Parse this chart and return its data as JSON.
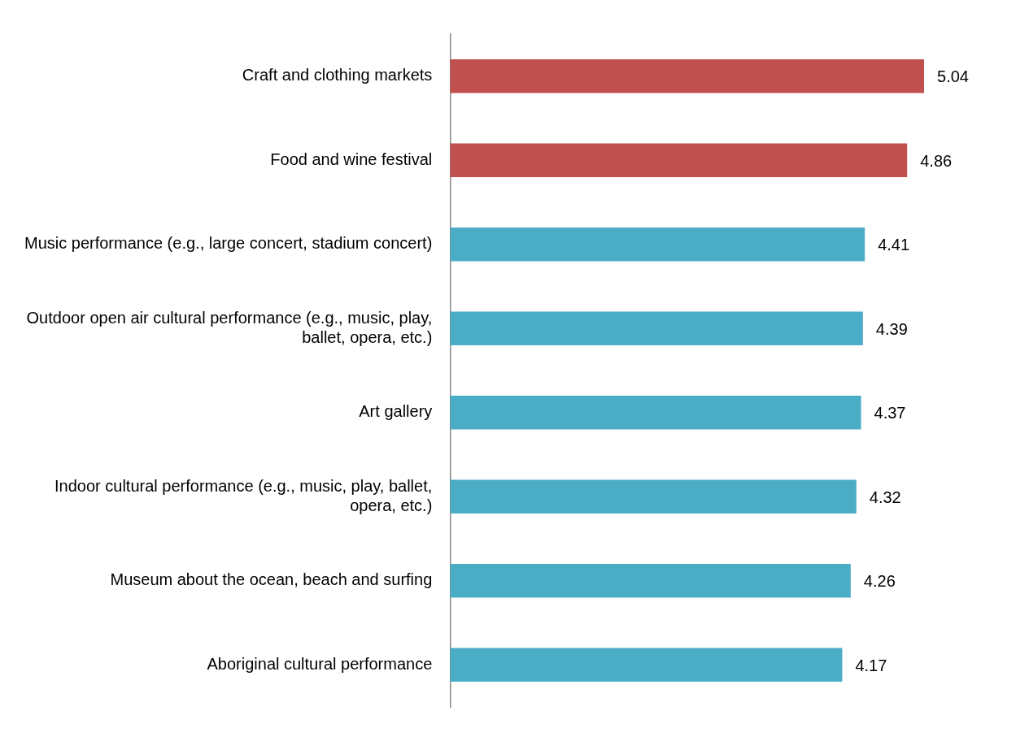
{
  "chart_data": {
    "type": "bar",
    "orientation": "horizontal",
    "categories": [
      "Craft and clothing markets",
      "Food and wine festival",
      "Music performance (e.g., large concert, stadium concert)",
      "Outdoor open air cultural performance (e.g., music, play, ballet, opera, etc.)",
      "Art gallery",
      "Indoor cultural performance (e.g., music, play, ballet, opera, etc.)",
      "Museum about the ocean, beach and surfing",
      "Aboriginal cultural performance"
    ],
    "values": [
      5.04,
      4.86,
      4.41,
      4.39,
      4.37,
      4.32,
      4.26,
      4.17
    ],
    "colors": [
      "#c0504d",
      "#c0504d",
      "#4bacc6",
      "#4bacc6",
      "#4bacc6",
      "#4bacc6",
      "#4bacc6",
      "#4bacc6"
    ],
    "data_labels": true,
    "grid": false,
    "legend": false
  }
}
